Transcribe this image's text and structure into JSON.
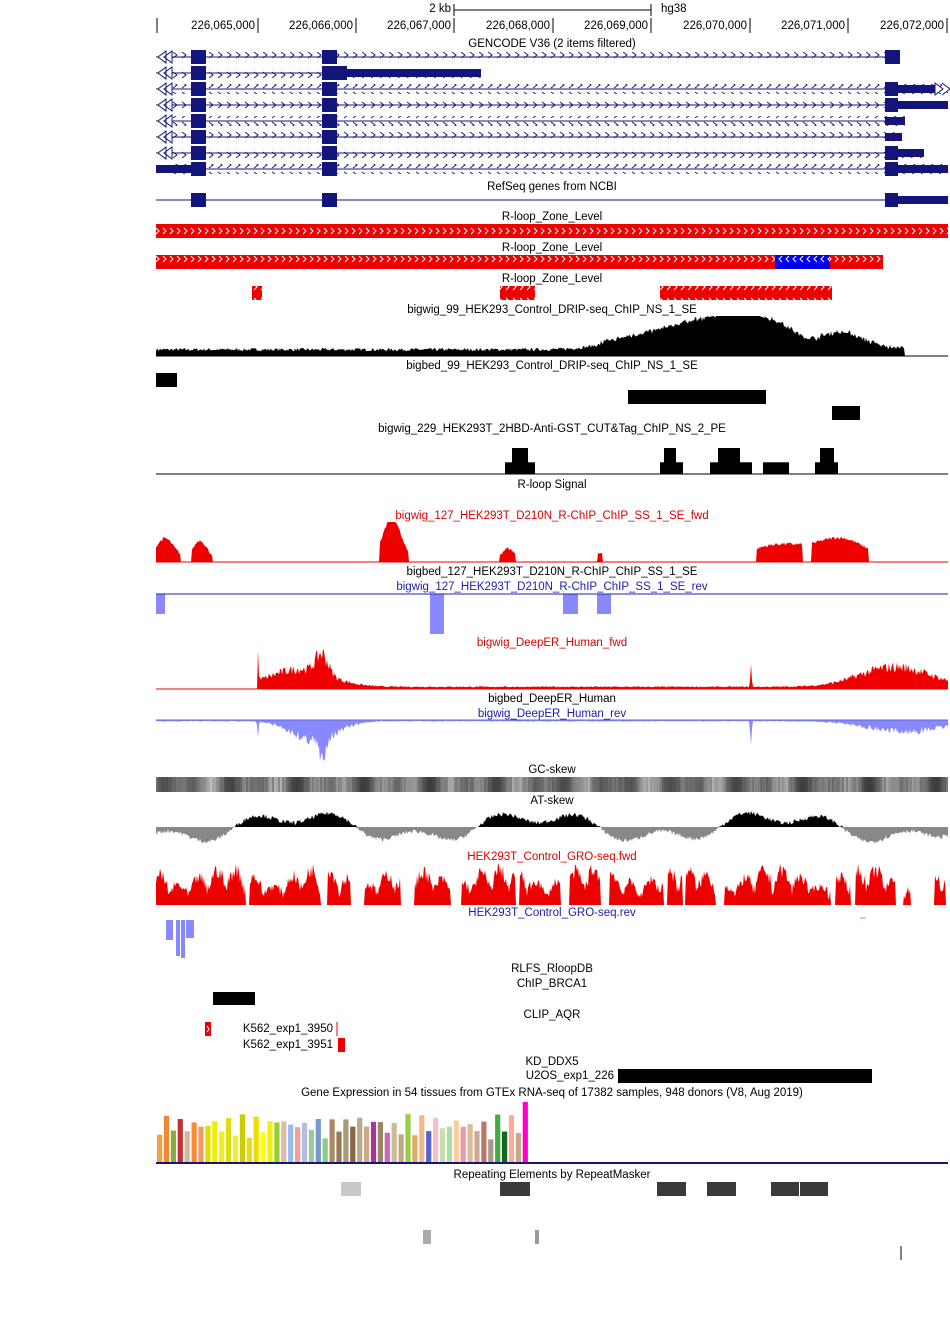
{
  "scale": {
    "size": "2 kb",
    "assembly": "hg38"
  },
  "ruler": {
    "ticks": [
      "226,065,000",
      "226,066,000",
      "226,067,000",
      "226,068,000",
      "226,069,000",
      "226,070,000",
      "226,071,000",
      "226,072,000"
    ]
  },
  "tracks": [
    {
      "title": "GENCODE V36 (2 items filtered)",
      "color": "#000000"
    },
    {
      "title": "RefSeq genes from NCBI",
      "color": "#000000"
    },
    {
      "title": "R-loop_Zone_Level",
      "color": "#000000"
    },
    {
      "title": "R-loop_Zone_Level",
      "color": "#000000"
    },
    {
      "title": "R-loop_Zone_Level",
      "color": "#000000"
    },
    {
      "title": "bigwig_99_HEK293_Control_DRIP-seq_ChIP_NS_1_SE",
      "color": "#000000"
    },
    {
      "title": "bigbed_99_HEK293_Control_DRIP-seq_ChIP_NS_1_SE",
      "color": "#000000"
    },
    {
      "title": "bigwig_229_HEK293T_2HBD-Anti-GST_CUT&Tag_ChIP_NS_2_PE",
      "color": "#000000"
    },
    {
      "title": "R-loop Signal",
      "color": "#000000"
    },
    {
      "title": "bigwig_127_HEK293T_D210N_R-ChIP_ChIP_SS_1_SE_fwd",
      "color": "#dd0000"
    },
    {
      "title": "bigbed_127_HEK293T_D210N_R-ChIP_ChIP_SS_1_SE",
      "color": "#000000"
    },
    {
      "title": "bigwig_127_HEK293T_D210N_R-ChIP_ChIP_SS_1_SE_rev",
      "color": "#1c1cb0"
    },
    {
      "title": "bigwig_DeepER_Human_fwd",
      "color": "#dd0000"
    },
    {
      "title": "bigbed_DeepER_Human",
      "color": "#000000"
    },
    {
      "title": "bigwig_DeepER_Human_rev",
      "color": "#1c1cb0"
    },
    {
      "title": "GC-skew",
      "color": "#000000"
    },
    {
      "title": "AT-skew",
      "color": "#000000"
    },
    {
      "title": "HEK293T_Control_GRO-seq.fwd",
      "color": "#dd0000"
    },
    {
      "title": "HEK293T_Control_GRO-seq.rev",
      "color": "#1c1cb0"
    },
    {
      "title": "RLFS_RloopDB",
      "color": "#000000"
    },
    {
      "title": "ChIP_BRCA1",
      "color": "#000000"
    },
    {
      "title": "CLIP_AQR",
      "color": "#000000"
    },
    {
      "title": "KD_DDX5",
      "color": "#000000"
    },
    {
      "title": "Gene Expression in 54 tissues from GTEx RNA-seq of 17382 samples, 948 donors (V8, Aug 2019)",
      "color": "#000000"
    },
    {
      "title": "Repeating Elements by RepeatMasker",
      "color": "#000000"
    }
  ],
  "features": {
    "clip": [
      "K562_exp1_3950",
      "K562_exp1_3951"
    ],
    "kd": [
      "U2OS_exp1_226"
    ]
  }
}
